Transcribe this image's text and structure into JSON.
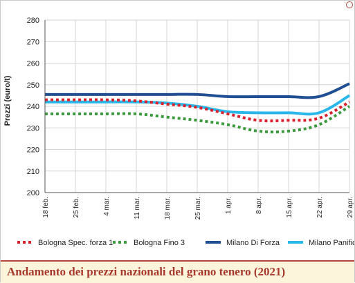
{
  "caption": "Andamento dei prezzi nazionali del grano tenero (2021)",
  "chart_data": {
    "type": "line",
    "title": "",
    "xlabel": "",
    "ylabel": "Prezzi (euro/t)",
    "ylim": [
      200,
      280
    ],
    "yticks": [
      200,
      210,
      220,
      230,
      240,
      250,
      260,
      270,
      280
    ],
    "grid": true,
    "legend_position": "bottom",
    "categories": [
      "18 feb.",
      "25 feb.",
      "4 mar.",
      "11 mar.",
      "18 mar.",
      "25 mar.",
      "1 apr.",
      "8 apr.",
      "15 apr.",
      "22 apr.",
      "29 apr."
    ],
    "series": [
      {
        "name": "Bologna Spec. forza 1",
        "style": "dotted",
        "color": "#d9212e",
        "values": [
          243,
          243,
          243,
          242.5,
          241,
          239.5,
          236.5,
          233.5,
          233.5,
          234.5,
          242
        ]
      },
      {
        "name": "Bologna Fino 3",
        "style": "dotted",
        "color": "#3a9a3c",
        "values": [
          236.5,
          236.5,
          236.5,
          236.5,
          235,
          233.5,
          231.5,
          228.5,
          228.5,
          231.5,
          240
        ]
      },
      {
        "name": "Milano Di Forza",
        "style": "solid",
        "color": "#1f4e93",
        "values": [
          245.5,
          245.5,
          245.5,
          245.5,
          245.5,
          245.5,
          244.5,
          244.5,
          244.5,
          244.5,
          250.5
        ]
      },
      {
        "name": "Milano Panificabile",
        "style": "solid",
        "color": "#29b6e8",
        "values": [
          242,
          242,
          242,
          242,
          241.5,
          240,
          237.5,
          237,
          237,
          237,
          245
        ]
      }
    ]
  }
}
